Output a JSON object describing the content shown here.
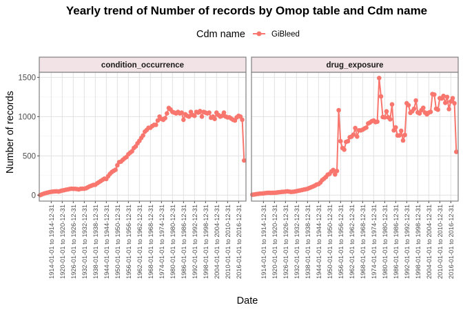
{
  "chart_data": {
    "type": "line",
    "title": "Yearly trend of Number of records by Omop table and Cdm name",
    "xlabel": "Date",
    "ylabel": "Number of records",
    "legend": {
      "title": "Cdm name",
      "placement": "top",
      "entries": [
        "GiBleed"
      ]
    },
    "series_color": "#F8766D",
    "grid": true,
    "ylim": [
      0,
      1550
    ],
    "yticks": [
      0,
      500,
      1000,
      1500
    ],
    "x_first_year": 1908,
    "x_tick_labels": [
      "1914-01-01 to 1914-12-31",
      "1920-01-01 to 1920-12-31",
      "1926-01-01 to 1926-12-31",
      "1932-01-01 to 1932-12-31",
      "1938-01-01 to 1938-12-31",
      "1944-01-01 to 1944-12-31",
      "1950-01-01 to 1950-12-31",
      "1956-01-01 to 1956-12-31",
      "1962-01-01 to 1962-12-31",
      "1968-01-01 to 1968-12-31",
      "1974-01-01 to 1974-12-31",
      "1980-01-01 to 1980-12-31",
      "1986-01-01 to 1986-12-31",
      "1992-01-01 to 1992-12-31",
      "1998-01-01 to 1998-12-31",
      "2004-01-01 to 2004-12-31",
      "2010-01-01 to 2010-12-31",
      "2016-01-01 to 2016-12-31"
    ],
    "panels": [
      {
        "strip": "condition_occurrence",
        "series": [
          {
            "name": "GiBleed",
            "values": [
              0,
              10,
              18,
              25,
              32,
              38,
              42,
              45,
              47,
              48,
              45,
              52,
              58,
              62,
              68,
              72,
              78,
              82,
              80,
              80,
              76,
              72,
              80,
              82,
              82,
              88,
              100,
              112,
              120,
              130,
              132,
              150,
              165,
              180,
              195,
              210,
              205,
              240,
              270,
              294,
              310,
              323,
              380,
              420,
              426,
              450,
              470,
              485,
              520,
              540,
              558,
              600,
              620,
              660,
              690,
              728,
              760,
              808,
              830,
              858,
              858,
              880,
              895,
              895,
              950,
              1000,
              970,
              960,
              980,
              1040,
              1110,
              1090,
              1060,
              1050,
              1040,
              1060,
              1040,
              1050,
              960,
              1030,
              1010,
              1000,
              1060,
              1020,
              1010,
              1060,
              1050,
              1070,
              1000,
              1060,
              1050,
              1040,
              1050,
              985,
              1000,
              970,
              1050,
              1020,
              1000,
              1010,
              1050,
              1000,
              990,
              990,
              975,
              960,
              950,
              990,
              1010,
              1000,
              960,
              440
            ]
          }
        ]
      },
      {
        "strip": "drug_exposure",
        "series": [
          {
            "name": "GiBleed",
            "values": [
              5,
              8,
              12,
              15,
              18,
              20,
              22,
              25,
              28,
              30,
              28,
              30,
              30,
              32,
              35,
              38,
              40,
              42,
              45,
              48,
              45,
              40,
              42,
              45,
              50,
              55,
              60,
              65,
              70,
              75,
              80,
              90,
              100,
              110,
              120,
              135,
              140,
              160,
              190,
              210,
              230,
              260,
              270,
              300,
              320,
              263,
              307,
              1082,
              687,
              600,
              579,
              678,
              687,
              737,
              746,
              770,
              854,
              746,
              825,
              825,
              833,
              848,
              860,
              912,
              925,
              941,
              950,
              930,
              935,
              1491,
              1257,
              994,
              990,
              1067,
              990,
              965,
              1155,
              825,
              862,
              760,
              760,
              819,
              696,
              766,
              1170,
              1146,
              1047,
              1067,
              1100,
              1205,
              1053,
              1040,
              1082,
              1111,
              1050,
              1029,
              1050,
              1060,
              1287,
              1281,
              1100,
              1088,
              1234,
              1230,
              1263,
              1175,
              1250,
              1096,
              1193,
              1234,
              1170,
              550
            ]
          }
        ]
      }
    ]
  }
}
